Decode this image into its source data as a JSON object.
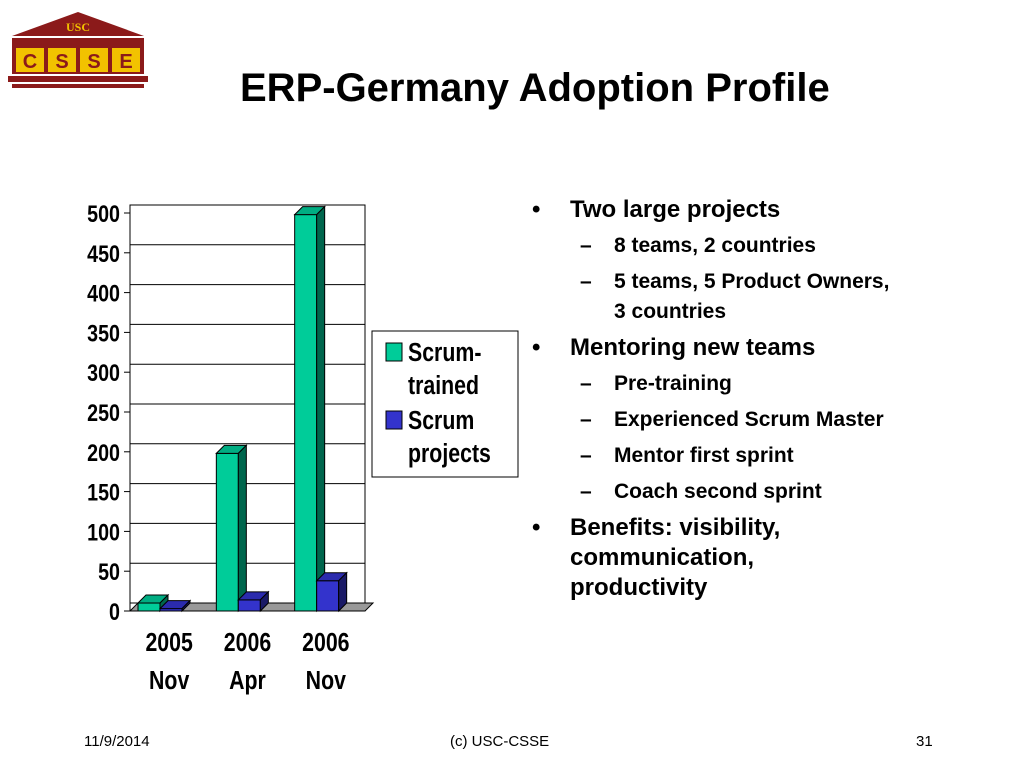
{
  "logo": {
    "top_text": "USC",
    "letters": [
      "C",
      "S",
      "S",
      "E"
    ]
  },
  "title": "ERP-Germany Adoption Profile",
  "chart_data": {
    "type": "bar",
    "categories": [
      [
        "2005",
        "Nov"
      ],
      [
        "2006",
        "Apr"
      ],
      [
        "2006",
        "Nov"
      ]
    ],
    "series": [
      {
        "name": "Scrum-trained",
        "values": [
          10,
          198,
          498
        ],
        "color": "#00cc99"
      },
      {
        "name": "Scrum projects",
        "values": [
          3,
          14,
          38
        ],
        "color": "#3333cc"
      }
    ],
    "yticks": [
      0,
      50,
      100,
      150,
      200,
      250,
      300,
      350,
      400,
      450,
      500
    ],
    "ylim": [
      0,
      500
    ],
    "grid": true,
    "legend": {
      "placement": "right",
      "entries": [
        [
          "Scrum-",
          "trained"
        ],
        [
          "Scrum",
          "projects"
        ]
      ]
    }
  },
  "bullets": [
    {
      "level": 1,
      "text": "Two large projects"
    },
    {
      "level": 2,
      "text": "8 teams, 2 countries"
    },
    {
      "level": 2,
      "text": "5 teams, 5 Product Owners, 3 countries"
    },
    {
      "level": 1,
      "text": "Mentoring new teams"
    },
    {
      "level": 2,
      "text": "Pre-training"
    },
    {
      "level": 2,
      "text": "Experienced Scrum Master"
    },
    {
      "level": 2,
      "text": "Mentor first sprint"
    },
    {
      "level": 2,
      "text": "Coach second sprint"
    },
    {
      "level": 1,
      "text": "Benefits: visibility, communication, productivity"
    }
  ],
  "footer": {
    "date": "11/9/2014",
    "center": "(c) USC-CSSE",
    "page": "31"
  }
}
